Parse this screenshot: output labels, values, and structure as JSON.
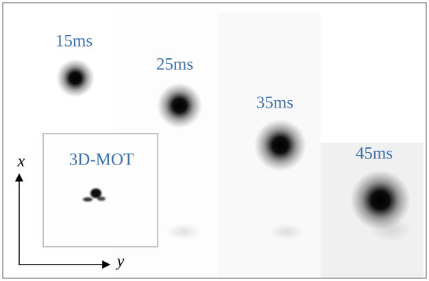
{
  "panels": [
    {
      "label": "15ms"
    },
    {
      "label": "25ms"
    },
    {
      "label": "35ms"
    },
    {
      "label": "45ms"
    }
  ],
  "inset": {
    "label": "3D-MOT"
  },
  "axes": {
    "vertical": "x",
    "horizontal": "y"
  }
}
